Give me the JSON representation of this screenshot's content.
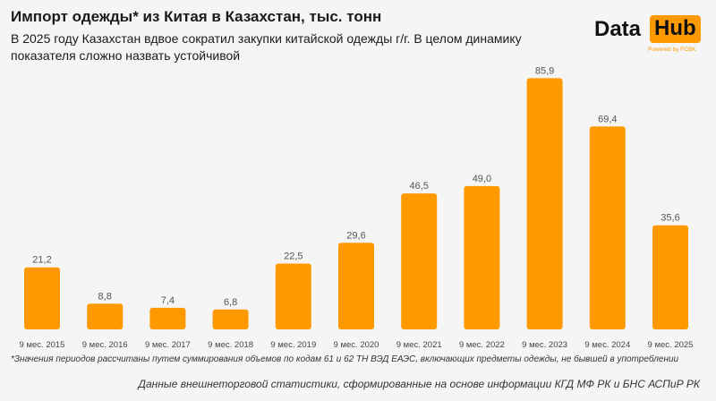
{
  "header": {
    "title": "Импорт одежды* из Китая в Казахстан, тыс. тонн",
    "subtitle": "В 2025 году Казахстан вдвое сократил закупки китайской одежды г/г. В целом динамику показателя сложно назвать устойчивой"
  },
  "logo": {
    "word1": "Data",
    "word2": "Hub",
    "tagline": "Powered by FCBK",
    "accent": "#ff9900"
  },
  "chart_data": {
    "type": "bar",
    "title": "",
    "xlabel": "",
    "ylabel": "",
    "categories": [
      "9 мес. 2015",
      "9 мес. 2016",
      "9 мес. 2017",
      "9 мес. 2018",
      "9 мес. 2019",
      "9 мес. 2020",
      "9 мес. 2021",
      "9 мес. 2022",
      "9 мес. 2023",
      "9 мес. 2024",
      "9 мес. 2025"
    ],
    "values": [
      21.2,
      8.8,
      7.4,
      6.8,
      22.5,
      29.6,
      46.5,
      49.0,
      85.9,
      69.4,
      35.6
    ],
    "value_labels": [
      "21,2",
      "8,8",
      "7,4",
      "6,8",
      "22,5",
      "29,6",
      "46,5",
      "49,0",
      "85,9",
      "69,4",
      "35,6"
    ],
    "ylim": [
      0,
      90
    ],
    "grid": false,
    "bar_color": "#ff9900"
  },
  "footer": {
    "footnote": "*Значения периодов рассчитаны путем суммирования объемов по кодам 61 и 62 ТН ВЭД ЕАЭС, включающих предметы одежды, не бывшей в употреблении",
    "source": "Данные внешнеторговой статистики, сформированные на основе информации КГД МФ РК и БНС АСПиР РК"
  }
}
